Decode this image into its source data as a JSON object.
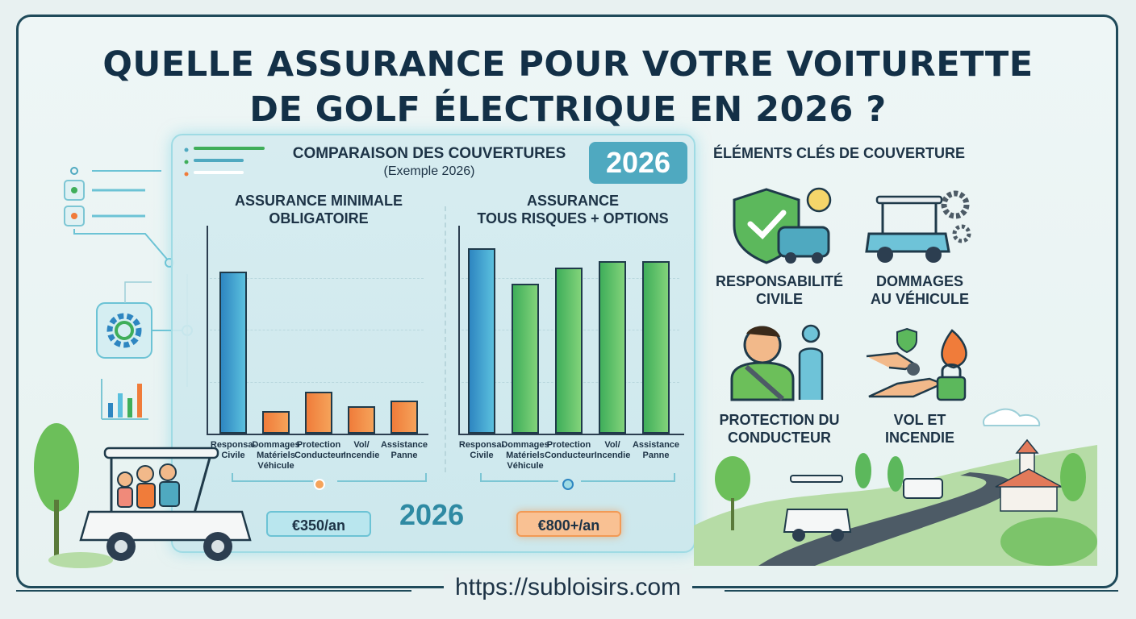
{
  "title": {
    "line1": "QUELLE ASSURANCE POUR VOTRE VOITURETTE",
    "line2": "DE GOLF ÉLECTRIQUE EN 2026 ?"
  },
  "panel": {
    "title": "COMPARAISON DES COUVERTURES",
    "subtitle": "(Exemple 2026)",
    "year_badge": "2026",
    "year_big": "2026"
  },
  "chart_data": [
    {
      "type": "bar",
      "title": "ASSURANCE MINIMALE OBLIGATOIRE",
      "title_lines": [
        "ASSURANCE MINIMALE",
        "OBLIGATOIRE"
      ],
      "categories": [
        "Responsa-\nCivile",
        "Dommages\nMatériels\nVéhicule",
        "Protection\nConducteur",
        "Vol/\nIncendie",
        "Assistance\nPanne"
      ],
      "values": [
        78,
        11,
        20,
        13,
        16
      ],
      "colors": [
        "blue",
        "orange",
        "orange",
        "orange",
        "orange"
      ],
      "ylim": [
        0,
        100
      ],
      "grid": true,
      "price": "€350/an"
    },
    {
      "type": "bar",
      "title": "ASSURANCE TOUS RISQUES + OPTIONS",
      "title_lines": [
        "ASSURANCE",
        "TOUS RISQUES + OPTIONS"
      ],
      "categories": [
        "Responsa-\nCivile",
        "Dommages\nMatériels\nVéhicule",
        "Protection\nConducteur",
        "Vol/\nIncendie",
        "Assistance\nPanne"
      ],
      "values": [
        89,
        72,
        80,
        83,
        83
      ],
      "colors": [
        "blue",
        "green",
        "green",
        "green",
        "green"
      ],
      "ylim": [
        0,
        100
      ],
      "grid": true,
      "price": "€800+/an"
    }
  ],
  "features": {
    "heading": "ÉLÉMENTS CLÉS DE COUVERTURE",
    "items": [
      {
        "line1": "RESPONSABILITÉ",
        "line2": "CIVILE",
        "icon": "shield-car-icon"
      },
      {
        "line1": "DOMMAGES",
        "line2": "AU VÉHICULE",
        "icon": "golf-cart-gear-icon"
      },
      {
        "line1": "PROTECTION DU",
        "line2": "CONDUCTEUR",
        "icon": "driver-seatbelt-icon"
      },
      {
        "line1": "VOL ET",
        "line2": "INCENDIE",
        "icon": "hand-lock-fire-icon"
      }
    ]
  },
  "footer": {
    "url": "https://subloisirs.com"
  },
  "colors": {
    "navy": "#133047",
    "blue": "#2e86c1",
    "green": "#3fae5a",
    "orange": "#f07c3a",
    "teal": "#4fa9c0"
  }
}
